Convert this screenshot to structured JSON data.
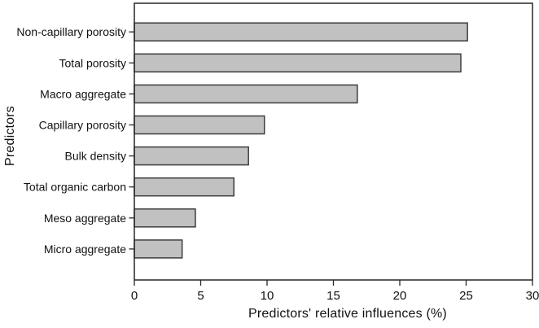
{
  "figure": {
    "kind": "horizontal-bar-chart-figure"
  },
  "chart_data": {
    "type": "bar",
    "orientation": "horizontal",
    "title": "",
    "xlabel": "Predictors' relative influences (%)",
    "ylabel": "Predictors",
    "categories": [
      "Non-capillary porosity",
      "Total porosity",
      "Macro aggregate",
      "Capillary porosity",
      "Bulk density",
      "Total organic carbon",
      "Meso aggregate",
      "Micro aggregate"
    ],
    "values": [
      25.1,
      24.6,
      16.8,
      9.8,
      8.6,
      7.5,
      4.6,
      3.6
    ],
    "xlim": [
      0,
      30
    ],
    "xticks": [
      0,
      5,
      10,
      15,
      20,
      25,
      30
    ],
    "grid": false,
    "legend": "none",
    "frame": true,
    "bar_fill": "#c1c1c1",
    "bar_stroke": "#3d3d3d",
    "axis_color": "#262626",
    "text_color": "#111111",
    "background": "#ffffff"
  }
}
